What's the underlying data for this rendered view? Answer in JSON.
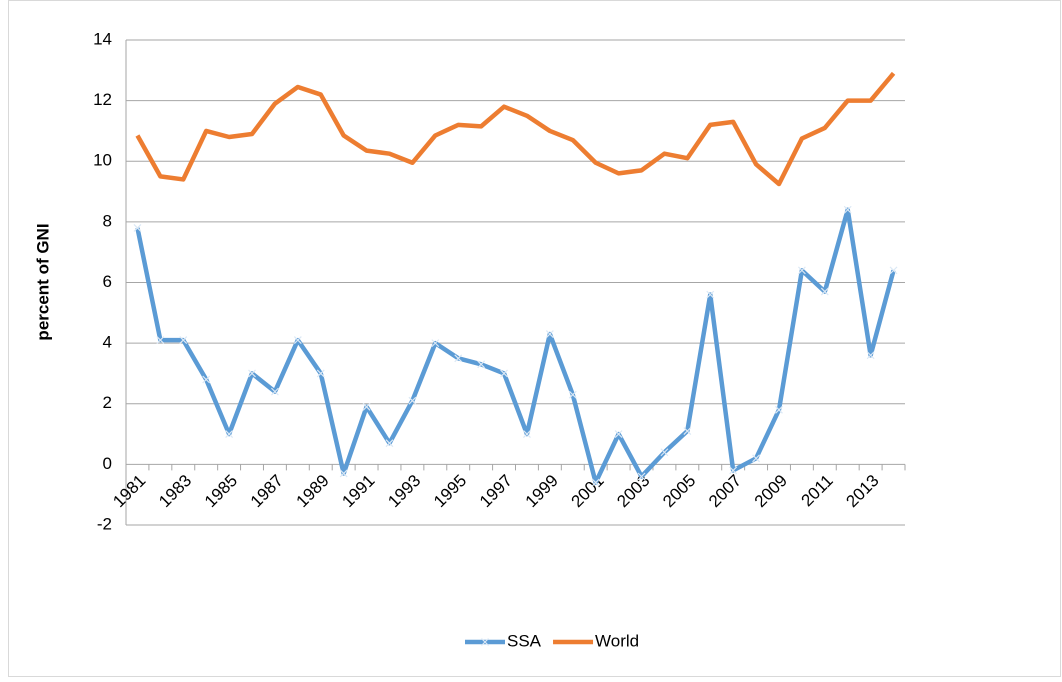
{
  "chart_data": {
    "type": "line",
    "y_label": "percent of GNI",
    "categories": [
      "1981",
      null,
      "1983",
      null,
      "1985",
      null,
      "1987",
      null,
      "1989",
      null,
      "1991",
      null,
      "1993",
      null,
      "1995",
      null,
      "1997",
      null,
      "1999",
      null,
      "2001",
      null,
      "2003",
      null,
      "2005",
      null,
      "2007",
      null,
      "2009",
      null,
      "2011",
      null,
      "2013",
      null
    ],
    "series": [
      {
        "name": "SSA",
        "color": "#5b9bd5",
        "marker": "x",
        "values": [
          7.8,
          4.1,
          4.1,
          2.8,
          1.0,
          3.0,
          2.4,
          4.1,
          3.0,
          -0.3,
          1.9,
          0.7,
          2.1,
          4.0,
          3.5,
          3.3,
          3.0,
          1.0,
          4.3,
          2.3,
          -0.6,
          1.0,
          -0.4,
          0.4,
          1.1,
          5.6,
          -0.2,
          0.2,
          1.8,
          6.4,
          5.7,
          8.4,
          3.6,
          6.4
        ]
      },
      {
        "name": "World",
        "color": "#ed7d31",
        "values": [
          10.85,
          9.5,
          9.4,
          11.0,
          10.8,
          10.9,
          11.9,
          12.45,
          12.2,
          10.85,
          10.35,
          10.25,
          9.95,
          10.85,
          11.2,
          11.15,
          11.8,
          11.5,
          11.0,
          10.7,
          9.95,
          9.6,
          9.7,
          10.25,
          10.1,
          11.2,
          11.3,
          9.9,
          9.25,
          10.75,
          11.1,
          12.0,
          12.0,
          12.9
        ]
      }
    ],
    "ylim": [
      -2,
      14
    ],
    "yticks": [
      -2,
      0,
      2,
      4,
      6,
      8,
      10,
      12,
      14
    ],
    "grid": true,
    "legend": "bottom"
  }
}
